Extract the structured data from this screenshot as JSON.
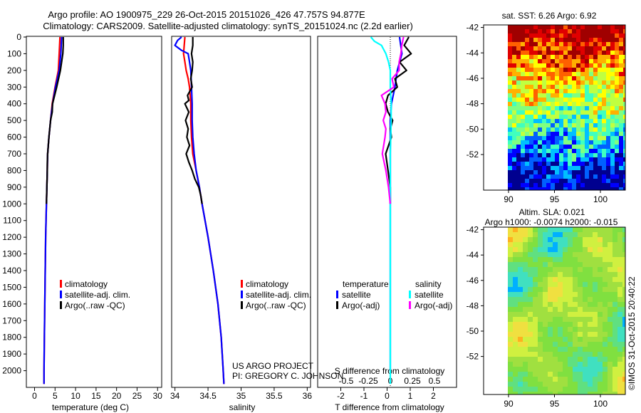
{
  "header": {
    "line1": "Argo profile: AO 1900975_229 26-Oct-2015 20151026_426 47.757S 94.877E",
    "line2": "Climatology: CARS2009. Satellite-adjusted climatology: synTS_20151024.nc (2.2d earlier)"
  },
  "depth_ticks": [
    "0",
    "100",
    "200",
    "300",
    "400",
    "500",
    "600",
    "700",
    "800",
    "900",
    "1000",
    "1100",
    "1200",
    "1300",
    "1400",
    "1500",
    "1600",
    "1700",
    "1800",
    "1900",
    "2000"
  ],
  "colors": {
    "climatology": "#ff0000",
    "satellite_adj": "#0000ff",
    "argo": "#000000",
    "satellite_diff": "#00ffff",
    "argo_adj_diff": "#ff00ff"
  },
  "panels": {
    "temperature": {
      "xlabel": "temperature (deg C)",
      "xticks": [
        "0",
        "5",
        "10",
        "15",
        "20",
        "25",
        "30"
      ],
      "legend": [
        "climatology",
        "satellite-adj. clim.",
        "Argo(..raw -QC)"
      ]
    },
    "salinity": {
      "xlabel": "salinity",
      "xticks": [
        "34",
        "34.5",
        "35",
        "35.5",
        "36"
      ],
      "legend": [
        "climatology",
        "satellite-adj. clim.",
        "Argo(..raw -QC)"
      ],
      "credit1": "US ARGO PROJECT",
      "credit2": "PI: GREGORY C. JOHNSON"
    },
    "difference": {
      "xlabel": "T difference from climatology",
      "s_label": "S difference from climatology",
      "t_ticks": [
        "-2",
        "-1",
        "0",
        "1",
        "2"
      ],
      "s_ticks": [
        "-0.5",
        "-0.25",
        "0",
        "0.25",
        "0.5"
      ],
      "legend_head_t": "temperature",
      "legend_head_s": "salinity",
      "legend_t": [
        "satellite",
        "Argo(-adj)"
      ],
      "legend_s": [
        "satellite",
        "Argo(-adj)"
      ]
    }
  },
  "maps": {
    "sst_title": "sat. SST: 6.26 Argo: 6.92",
    "sla_title1": "Altim. SLA: 0.021",
    "sla_title2": "Argo h1000: -0.0074 h2000: -0.015",
    "yticks": [
      "-42",
      "-44",
      "-46",
      "-48",
      "-50",
      "-52"
    ],
    "xticks": [
      "90",
      "95",
      "100"
    ],
    "stamp": "©IMOS 31-Oct-2015 20:40:22"
  },
  "chart_data": {
    "type": "line",
    "y_axis": "depth (dbar)",
    "ylim": [
      2100,
      0
    ],
    "temperature": {
      "xlim": [
        -2,
        31
      ],
      "series": [
        {
          "name": "climatology",
          "depth": [
            0,
            100,
            200,
            300,
            400,
            500,
            600,
            700,
            800,
            900,
            1000,
            1200,
            1400,
            1600,
            1800,
            2000,
            2080
          ],
          "values": [
            6.2,
            6.0,
            5.8,
            5.0,
            4.3,
            3.9,
            3.5,
            3.2,
            3.1,
            3.0,
            2.9,
            2.7,
            2.6,
            2.5,
            2.4,
            2.3,
            2.3
          ]
        },
        {
          "name": "satellite-adj. clim.",
          "depth": [
            0,
            100,
            200,
            300,
            400,
            500,
            600,
            700,
            800,
            900,
            1000,
            1200,
            1400,
            1600,
            1800,
            2000,
            2080
          ],
          "values": [
            6.6,
            6.4,
            6.0,
            5.1,
            4.4,
            3.9,
            3.5,
            3.2,
            3.1,
            3.0,
            2.9,
            2.7,
            2.6,
            2.5,
            2.4,
            2.3,
            2.3
          ]
        },
        {
          "name": "Argo(..raw -QC)",
          "depth": [
            0,
            50,
            100,
            200,
            300,
            350,
            400,
            450,
            500,
            600,
            700,
            760,
            800,
            900,
            1000
          ],
          "values": [
            7.0,
            7.0,
            6.9,
            6.3,
            5.4,
            4.9,
            4.4,
            4.3,
            3.9,
            3.5,
            3.2,
            3.1,
            3.1,
            3.0,
            2.9
          ]
        }
      ]
    },
    "salinity": {
      "xlim": [
        33.95,
        36.05
      ],
      "series": [
        {
          "name": "climatology",
          "depth": [
            0,
            100,
            150,
            200,
            250,
            300,
            400,
            500,
            600,
            700,
            800,
            900,
            1000,
            1200,
            1400,
            1600,
            1800,
            2000,
            2080
          ],
          "values": [
            34.15,
            34.13,
            34.15,
            34.17,
            34.2,
            34.22,
            34.24,
            34.24,
            34.25,
            34.27,
            34.32,
            34.37,
            34.41,
            34.5,
            34.58,
            34.65,
            34.7,
            34.73,
            34.74
          ]
        },
        {
          "name": "satellite-adj. clim.",
          "depth": [
            0,
            20,
            50,
            80,
            100,
            150,
            200,
            300,
            400,
            500,
            600,
            700,
            800,
            900,
            1000,
            1200,
            1400,
            1600,
            1800,
            2000,
            2080
          ],
          "values": [
            34.1,
            34.04,
            34.0,
            34.1,
            34.2,
            34.22,
            34.24,
            34.25,
            34.26,
            34.26,
            34.27,
            34.29,
            34.32,
            34.37,
            34.41,
            34.5,
            34.58,
            34.65,
            34.7,
            34.73,
            34.74
          ]
        },
        {
          "name": "Argo(..raw -QC)",
          "depth": [
            0,
            50,
            100,
            150,
            200,
            250,
            300,
            350,
            380,
            400,
            450,
            500,
            550,
            600,
            650,
            700,
            750,
            800,
            850,
            900,
            950,
            1000
          ],
          "values": [
            34.27,
            34.27,
            34.25,
            34.27,
            34.26,
            34.24,
            34.26,
            34.19,
            34.21,
            34.15,
            34.21,
            34.16,
            34.2,
            34.18,
            34.22,
            34.17,
            34.21,
            34.26,
            34.3,
            34.36,
            34.39,
            34.41
          ]
        }
      ]
    },
    "difference": {
      "xlim_t": [
        -3,
        3
      ],
      "series": [
        {
          "name": "temperature satellite",
          "depth": [
            0,
            100,
            200,
            300,
            400,
            500,
            600,
            700,
            800,
            1000,
            1500,
            2000
          ],
          "values": [
            0.4,
            0.5,
            0.3,
            0.2,
            0.05,
            0.0,
            0.0,
            0.0,
            0.0,
            0.0,
            0.0,
            0.0
          ]
        },
        {
          "name": "temperature Argo(-adj)",
          "depth": [
            0,
            50,
            100,
            150,
            200,
            250,
            300,
            350,
            400,
            450,
            500,
            550,
            600,
            700,
            800,
            900,
            1000
          ],
          "values": [
            0.8,
            0.6,
            0.9,
            0.4,
            0.7,
            0.2,
            0.3,
            -0.1,
            -0.2,
            -0.1,
            0.1,
            0.0,
            0.05,
            -0.2,
            -0.1,
            0.0,
            0.0
          ]
        },
        {
          "name": "salinity satellite",
          "depth": [
            0,
            25,
            50,
            100,
            150,
            200,
            300,
            400,
            500,
            700,
            900,
            1200,
            1500,
            1800,
            1900,
            2000,
            2080
          ],
          "values": [
            -0.22,
            -0.18,
            -0.1,
            -0.05,
            -0.02,
            0.0,
            0.0,
            0.01,
            0.01,
            0.0,
            0.0,
            0.0,
            0.0,
            0.0,
            0.0,
            0.0,
            0.0
          ]
        },
        {
          "name": "salinity Argo(-adj)",
          "depth": [
            0,
            50,
            100,
            150,
            200,
            250,
            300,
            350,
            400,
            450,
            500,
            550,
            600,
            700,
            800,
            900,
            1000
          ],
          "values": [
            0.15,
            0.13,
            0.12,
            0.1,
            0.1,
            0.02,
            0.04,
            -0.1,
            -0.06,
            -0.05,
            -0.08,
            -0.05,
            -0.06,
            -0.09,
            -0.05,
            -0.02,
            0.0
          ]
        }
      ]
    }
  }
}
